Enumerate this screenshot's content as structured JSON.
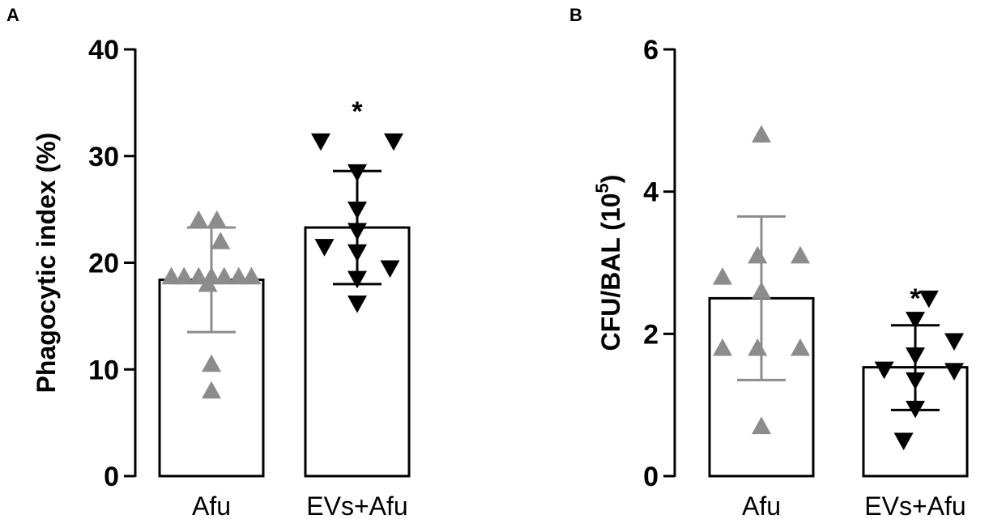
{
  "chart_data": [
    {
      "type": "bar",
      "panel": "A",
      "ylabel": "Phagocytic index (%)",
      "ylabel_sup": "",
      "ylabel_suffix": "",
      "ylim": [
        0,
        40
      ],
      "yticks": [
        0,
        10,
        20,
        30,
        40
      ],
      "categories": [
        "Afu",
        "EVs+Afu"
      ],
      "means": [
        18.4,
        23.3
      ],
      "sd_upper": [
        23.3,
        28.6
      ],
      "sd_lower": [
        13.5,
        18.0
      ],
      "significance": [
        "",
        "*"
      ],
      "point_colors": [
        "#8c8c8c",
        "#000000"
      ],
      "markers": [
        "triangle-up",
        "triangle-down"
      ],
      "points": [
        [
          [
            -1.1,
            18.7
          ],
          [
            -0.75,
            18.7
          ],
          [
            -0.35,
            18.7
          ],
          [
            0.0,
            18.7
          ],
          [
            0.35,
            18.7
          ],
          [
            0.75,
            18.7
          ],
          [
            1.1,
            18.7
          ],
          [
            -0.35,
            24.0
          ],
          [
            0.15,
            24.0
          ],
          [
            0.25,
            22.0
          ],
          [
            -0.1,
            18.0
          ],
          [
            0.0,
            10.5
          ],
          [
            0.0,
            8.0
          ]
        ],
        [
          [
            -1.0,
            31.4
          ],
          [
            1.0,
            31.4
          ],
          [
            0.0,
            28.5
          ],
          [
            0.0,
            25.0
          ],
          [
            0.0,
            23.0
          ],
          [
            0.0,
            21.0
          ],
          [
            -0.9,
            21.5
          ],
          [
            0.9,
            19.5
          ],
          [
            0.0,
            18.5
          ],
          [
            0.0,
            16.2
          ]
        ]
      ]
    },
    {
      "type": "bar",
      "panel": "B",
      "ylabel": "CFU/BAL (10",
      "ylabel_sup": "5",
      "ylabel_suffix": ")",
      "ylim": [
        0,
        6
      ],
      "yticks": [
        0,
        2,
        4,
        6
      ],
      "categories": [
        "Afu",
        "EVs+Afu"
      ],
      "means": [
        2.5,
        1.53
      ],
      "sd_upper": [
        3.65,
        2.12
      ],
      "sd_lower": [
        1.35,
        0.93
      ],
      "significance": [
        "",
        "*"
      ],
      "point_colors": [
        "#8c8c8c",
        "#000000"
      ],
      "markers": [
        "triangle-up",
        "triangle-down"
      ],
      "points": [
        [
          [
            0.0,
            4.8
          ],
          [
            -1.0,
            2.8
          ],
          [
            -0.1,
            3.1
          ],
          [
            1.0,
            3.1
          ],
          [
            0.0,
            2.6
          ],
          [
            -1.0,
            1.8
          ],
          [
            -0.1,
            1.8
          ],
          [
            1.0,
            1.8
          ],
          [
            0.0,
            0.7
          ]
        ],
        [
          [
            0.35,
            2.5
          ],
          [
            0.0,
            2.2
          ],
          [
            1.0,
            1.9
          ],
          [
            0.0,
            1.7
          ],
          [
            -0.8,
            1.5
          ],
          [
            0.0,
            1.35
          ],
          [
            1.0,
            1.48
          ],
          [
            0.0,
            0.95
          ],
          [
            -0.3,
            0.5
          ]
        ]
      ]
    }
  ]
}
